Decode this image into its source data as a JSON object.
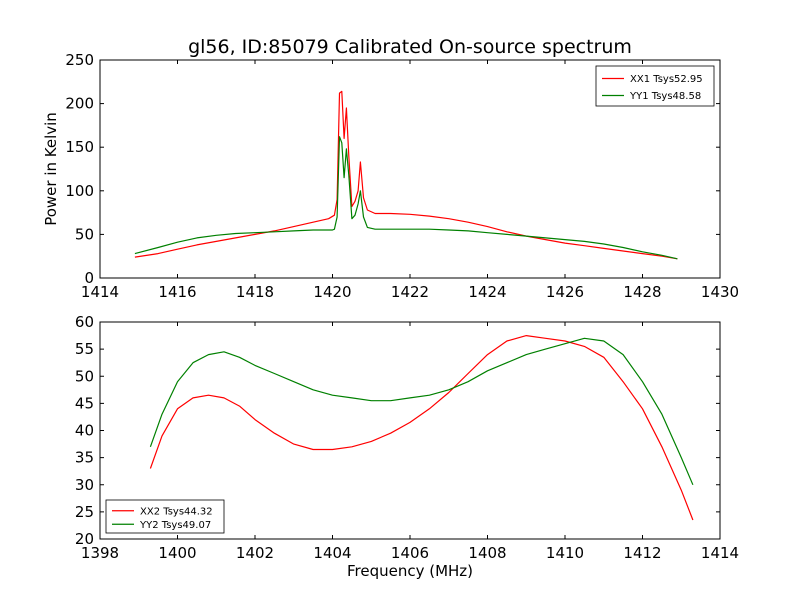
{
  "chart_data": {
    "title": "gl56, ID:85079 Calibrated On-source spectrum",
    "ylabel": "Power in Kelvin",
    "xlabel": "Frequency (MHz)",
    "subplots": [
      {
        "type": "line",
        "xlim": [
          1414,
          1430
        ],
        "ylim": [
          0,
          250
        ],
        "xticks": [
          "1414",
          "1416",
          "1418",
          "1420",
          "1422",
          "1424",
          "1426",
          "1428",
          "1430"
        ],
        "yticks": [
          "0",
          "50",
          "100",
          "150",
          "200",
          "250"
        ],
        "legend_position": "top-right",
        "series": [
          {
            "name": "XX1 Tsys52.95",
            "color": "#ff0000",
            "x": [
              1414.9,
              1415.5,
              1416.0,
              1416.5,
              1417.0,
              1417.5,
              1418.0,
              1418.5,
              1419.0,
              1419.5,
              1419.9,
              1420.05,
              1420.12,
              1420.18,
              1420.24,
              1420.3,
              1420.36,
              1420.42,
              1420.5,
              1420.58,
              1420.66,
              1420.72,
              1420.8,
              1420.9,
              1421.1,
              1421.5,
              1422.0,
              1422.5,
              1423.0,
              1423.5,
              1424.0,
              1424.5,
              1425.0,
              1425.5,
              1426.0,
              1426.5,
              1427.0,
              1427.5,
              1428.0,
              1428.5,
              1428.9
            ],
            "y": [
              24,
              28,
              33,
              38,
              42,
              46,
              50,
              54,
              59,
              64,
              68,
              72,
              90,
              212,
              214,
              160,
              195,
              140,
              82,
              88,
              100,
              133,
              92,
              78,
              74,
              74,
              73,
              71,
              68,
              64,
              59,
              53,
              48,
              44,
              40,
              37,
              34,
              31,
              28,
              25,
              22
            ]
          },
          {
            "name": "YY1 Tsys48.58",
            "color": "#008000",
            "x": [
              1414.9,
              1415.5,
              1416.0,
              1416.5,
              1417.0,
              1417.5,
              1418.0,
              1418.5,
              1419.0,
              1419.5,
              1420.0,
              1420.05,
              1420.12,
              1420.18,
              1420.24,
              1420.3,
              1420.36,
              1420.42,
              1420.5,
              1420.58,
              1420.66,
              1420.72,
              1420.8,
              1420.9,
              1421.1,
              1421.5,
              1422.0,
              1422.5,
              1423.0,
              1423.5,
              1424.0,
              1424.5,
              1425.0,
              1425.5,
              1426.0,
              1426.5,
              1427.0,
              1427.5,
              1428.0,
              1428.5,
              1428.9
            ],
            "y": [
              28,
              35,
              41,
              46,
              49,
              51,
              52,
              53,
              54,
              55,
              55,
              56,
              70,
              162,
              155,
              115,
              148,
              118,
              68,
              72,
              85,
              100,
              70,
              58,
              56,
              56,
              56,
              56,
              55,
              54,
              52,
              50,
              48,
              46,
              44,
              42,
              39,
              35,
              30,
              26,
              22
            ]
          }
        ]
      },
      {
        "type": "line",
        "xlim": [
          1398,
          1414
        ],
        "ylim": [
          20,
          60
        ],
        "xticks": [
          "1398",
          "1400",
          "1402",
          "1404",
          "1406",
          "1408",
          "1410",
          "1412",
          "1414"
        ],
        "yticks": [
          "20",
          "25",
          "30",
          "35",
          "40",
          "45",
          "50",
          "55",
          "60"
        ],
        "legend_position": "bottom-left",
        "series": [
          {
            "name": "XX2 Tsys44.32",
            "color": "#ff0000",
            "x": [
              1399.3,
              1399.6,
              1400.0,
              1400.4,
              1400.8,
              1401.2,
              1401.6,
              1402.0,
              1402.5,
              1403.0,
              1403.5,
              1404.0,
              1404.5,
              1405.0,
              1405.5,
              1406.0,
              1406.5,
              1407.0,
              1407.5,
              1408.0,
              1408.5,
              1409.0,
              1409.5,
              1410.0,
              1410.5,
              1411.0,
              1411.5,
              1412.0,
              1412.5,
              1413.0,
              1413.3
            ],
            "y": [
              33,
              39,
              44,
              46,
              46.5,
              46,
              44.5,
              42,
              39.5,
              37.5,
              36.5,
              36.5,
              37,
              38,
              39.5,
              41.5,
              44,
              47,
              50.5,
              54,
              56.5,
              57.5,
              57,
              56.5,
              55.5,
              53.5,
              49,
              44,
              37,
              29,
              23.5
            ]
          },
          {
            "name": "YY2 Tsys49.07",
            "color": "#008000",
            "x": [
              1399.3,
              1399.6,
              1400.0,
              1400.4,
              1400.8,
              1401.2,
              1401.6,
              1402.0,
              1402.5,
              1403.0,
              1403.5,
              1404.0,
              1404.5,
              1405.0,
              1405.5,
              1406.0,
              1406.5,
              1407.0,
              1407.5,
              1408.0,
              1408.5,
              1409.0,
              1409.5,
              1410.0,
              1410.5,
              1411.0,
              1411.5,
              1412.0,
              1412.5,
              1413.0,
              1413.3
            ],
            "y": [
              37,
              43,
              49,
              52.5,
              54,
              54.5,
              53.5,
              52,
              50.5,
              49,
              47.5,
              46.5,
              46,
              45.5,
              45.5,
              46,
              46.5,
              47.5,
              49,
              51,
              52.5,
              54,
              55,
              56,
              57,
              56.5,
              54,
              49,
              43,
              35,
              30
            ]
          }
        ]
      }
    ]
  }
}
